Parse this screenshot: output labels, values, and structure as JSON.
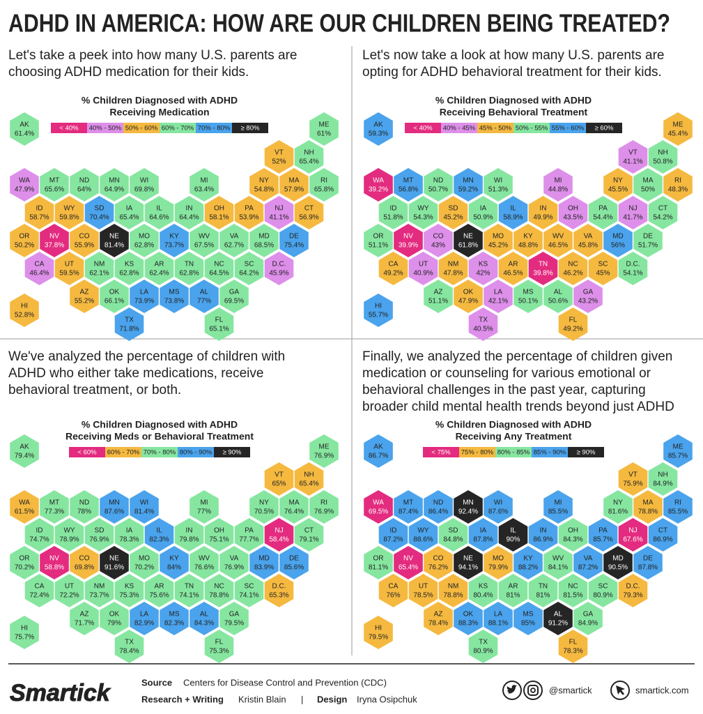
{
  "header": {
    "title": "ADHD IN AMERICA: HOW ARE OUR CHILDREN BEING TREATED?"
  },
  "chart_data": [
    {
      "type": "map",
      "description": [
        "Let's take a peek into how many U.S. parents are",
        "choosing ADHD medication for their kids."
      ],
      "title": [
        "% Children Diagnosed with ADHD",
        "Receiving Medication"
      ],
      "legend": {
        "labels": [
          "< 40%",
          "40% - 50%",
          "50% - 60%",
          "60% - 70%",
          "70% - 80%",
          "≥ 80%"
        ],
        "colors": [
          "#e32b7f",
          "#dd8fe9",
          "#f5b940",
          "#86e6a0",
          "#4aa3ec",
          "#252525"
        ],
        "bins": [
          40,
          50,
          60,
          70,
          80
        ]
      },
      "states": [
        "AK",
        "ME",
        "VT",
        "NH",
        "WA",
        "MT",
        "ND",
        "MN",
        "WI",
        "MI",
        "NY",
        "MA",
        "RI",
        "ID",
        "WY",
        "SD",
        "IA",
        "IL",
        "IN",
        "OH",
        "PA",
        "NJ",
        "CT",
        "OR",
        "NV",
        "CO",
        "NE",
        "MO",
        "KY",
        "WV",
        "VA",
        "MD",
        "DE",
        "CA",
        "UT",
        "NM",
        "KS",
        "AR",
        "TN",
        "NC",
        "SC",
        "D.C.",
        "AZ",
        "OK",
        "LA",
        "MS",
        "AL",
        "GA",
        "TX",
        "FL",
        "HI"
      ],
      "values": [
        61.4,
        61,
        52,
        65.4,
        47.9,
        65.6,
        64,
        64.9,
        69.8,
        63.4,
        54.8,
        57.9,
        65.8,
        58.7,
        59.8,
        70.4,
        65.4,
        64.6,
        64.4,
        58.1,
        53.9,
        41.1,
        56.9,
        50.2,
        37.8,
        55.9,
        81.4,
        62.8,
        73.7,
        67.5,
        62.7,
        68.5,
        75.4,
        46.4,
        59.5,
        62.1,
        62.8,
        62.4,
        62.8,
        64.5,
        64.2,
        45.9,
        55.2,
        66.1,
        73.9,
        73.8,
        77,
        69.5,
        71.8,
        65.1,
        52.8
      ],
      "value_labels": [
        "61.4%",
        "61%",
        "52%",
        "65.4%",
        "47.9%",
        "65.6%",
        "64%",
        "64.9%",
        "69.8%",
        "63.4%",
        "54.8%",
        "57.9%",
        "65.8%",
        "58.7%",
        "59.8%",
        "70.4%",
        "65.4%",
        "64.6%",
        "64.4%",
        "58.1%",
        "53.9%",
        "41.1%",
        "56.9%",
        "50.2%",
        "37.8%",
        "55.9%",
        "81.4%",
        "62.8%",
        "73.7%",
        "67.5%",
        "62.7%",
        "68.5%",
        "75.4%",
        "46.4%",
        "59.5%",
        "62.1%",
        "62.8%",
        "62.4%",
        "62.8%",
        "64.5%",
        "64.2%",
        "45.9%",
        "55.2%",
        "66.1%",
        "73.9%",
        "73.8%",
        "77%",
        "69.5%",
        "71.8%",
        "65.1%",
        "52.8%"
      ]
    },
    {
      "type": "map",
      "description": [
        "Let's now take a look at how many U.S. parents are",
        "opting for ADHD behavioral treatment for their kids."
      ],
      "title": [
        "% Children Diagnosed with ADHD",
        "Receiving Behavioral Treatment"
      ],
      "legend": {
        "labels": [
          "< 40%",
          "40% - 45%",
          "45% - 50%",
          "50% - 55%",
          "55% - 60%",
          "≥ 60%"
        ],
        "colors": [
          "#e32b7f",
          "#dd8fe9",
          "#f5b940",
          "#86e6a0",
          "#4aa3ec",
          "#252525"
        ],
        "bins": [
          40,
          45,
          50,
          55,
          60
        ]
      },
      "states": [
        "AK",
        "ME",
        "VT",
        "NH",
        "WA",
        "MT",
        "ND",
        "MN",
        "WI",
        "MI",
        "NY",
        "MA",
        "RI",
        "ID",
        "WY",
        "SD",
        "IA",
        "IL",
        "IN",
        "OH",
        "PA",
        "NJ",
        "CT",
        "OR",
        "NV",
        "CO",
        "NE",
        "MO",
        "KY",
        "WV",
        "VA",
        "MD",
        "DE",
        "CA",
        "UT",
        "NM",
        "KS",
        "AR",
        "TN",
        "NC",
        "SC",
        "D.C.",
        "AZ",
        "OK",
        "LA",
        "MS",
        "AL",
        "GA",
        "TX",
        "FL",
        "HI"
      ],
      "values": [
        59.3,
        45.4,
        41.1,
        50.8,
        39.2,
        56.8,
        50.7,
        59.2,
        51.3,
        44.8,
        45.5,
        50,
        48.3,
        51.8,
        54.3,
        45.2,
        50.9,
        58.9,
        49.9,
        43.5,
        54.4,
        41.7,
        54.2,
        51.1,
        39.9,
        43,
        61.8,
        45.2,
        48.8,
        46.5,
        45.8,
        56,
        51.7,
        49.2,
        40.9,
        47.8,
        42,
        46.5,
        39.8,
        46.2,
        45,
        54.1,
        51.1,
        47.9,
        42.1,
        50.1,
        50.6,
        43.2,
        40.5,
        49.2,
        55.7
      ],
      "value_labels": [
        "59.3%",
        "45.4%",
        "41.1%",
        "50.8%",
        "39.2%",
        "56.8%",
        "50.7%",
        "59.2%",
        "51.3%",
        "44.8%",
        "45.5%",
        "50%",
        "48.3%",
        "51.8%",
        "54.3%",
        "45.2%",
        "50.9%",
        "58.9%",
        "49.9%",
        "43.5%",
        "54.4%",
        "41.7%",
        "54.2%",
        "51.1%",
        "39.9%",
        "43%",
        "61.8%",
        "45.2%",
        "48.8%",
        "46.5%",
        "45.8%",
        "56%",
        "51.7%",
        "49.2%",
        "40.9%",
        "47.8%",
        "42%",
        "46.5%",
        "39.8%",
        "46.2%",
        "45%",
        "54.1%",
        "51.1%",
        "47.9%",
        "42.1%",
        "50.1%",
        "50.6%",
        "43.2%",
        "40.5%",
        "49.2%",
        "55.7%"
      ]
    },
    {
      "type": "map",
      "description": [
        "We've analyzed the percentage of children with",
        "ADHD who either take medications, receive",
        "behavioral treatment, or both."
      ],
      "title": [
        "% Children Diagnosed with ADHD",
        "Receiving Meds or Behavioral Treatment"
      ],
      "legend": {
        "labels": [
          "< 60%",
          "60% - 70%",
          "70% - 80%",
          "80% - 90%",
          "≥ 90%"
        ],
        "colors": [
          "#e32b7f",
          "#f5b940",
          "#86e6a0",
          "#4aa3ec",
          "#252525"
        ],
        "bins": [
          60,
          70,
          80,
          90
        ]
      },
      "states": [
        "AK",
        "ME",
        "VT",
        "NH",
        "WA",
        "MT",
        "ND",
        "MN",
        "WI",
        "MI",
        "NY",
        "MA",
        "RI",
        "ID",
        "WY",
        "SD",
        "IA",
        "IL",
        "IN",
        "OH",
        "PA",
        "NJ",
        "CT",
        "OR",
        "NV",
        "CO",
        "NE",
        "MO",
        "KY",
        "WV",
        "VA",
        "MD",
        "DE",
        "CA",
        "UT",
        "NM",
        "KS",
        "AR",
        "TN",
        "NC",
        "SC",
        "D.C.",
        "AZ",
        "OK",
        "LA",
        "MS",
        "AL",
        "GA",
        "TX",
        "FL",
        "HI"
      ],
      "values": [
        79.4,
        76.9,
        65,
        65.4,
        61.5,
        77.3,
        78,
        87.6,
        81.4,
        77,
        70.5,
        76.4,
        76.9,
        74.7,
        78.9,
        76.9,
        78.3,
        82.3,
        79.8,
        75.1,
        77.7,
        58.4,
        79.1,
        70.2,
        58.8,
        69.8,
        91.6,
        70.2,
        84,
        76.6,
        76.9,
        83.9,
        85.6,
        72.4,
        72.2,
        73.7,
        75.3,
        75.6,
        74.1,
        78.8,
        74.1,
        65.3,
        71.7,
        79,
        82.9,
        82.3,
        84.3,
        79.5,
        78.4,
        75.3,
        75.7
      ],
      "value_labels": [
        "79.4%",
        "76.9%",
        "65%",
        "65.4%",
        "61.5%",
        "77.3%",
        "78%",
        "87.6%",
        "81.4%",
        "77%",
        "70.5%",
        "76.4%",
        "76.9%",
        "74.7%",
        "78.9%",
        "76.9%",
        "78.3%",
        "82.3%",
        "79.8%",
        "75.1%",
        "77.7%",
        "58.4%",
        "79.1%",
        "70.2%",
        "58.8%",
        "69.8%",
        "91.6%",
        "70.2%",
        "84%",
        "76.6%",
        "76.9%",
        "83.9%",
        "85.6%",
        "72.4%",
        "72.2%",
        "73.7%",
        "75.3%",
        "75.6%",
        "74.1%",
        "78.8%",
        "74.1%",
        "65.3%",
        "71.7%",
        "79%",
        "82.9%",
        "82.3%",
        "84.3%",
        "79.5%",
        "78.4%",
        "75.3%",
        "75.7%"
      ]
    },
    {
      "type": "map",
      "description": [
        "Finally, we analyzed the percentage of children given",
        "medication or counseling for various emotional or",
        "behavioral challenges in the past year, capturing",
        "broader child mental health trends beyond just ADHD"
      ],
      "title": [
        "% Children Diagnosed with ADHD",
        "Receiving Any Treatment"
      ],
      "legend": {
        "labels": [
          "< 75%",
          "75% - 80%",
          "80% - 85%",
          "85% - 90%",
          "≥ 90%"
        ],
        "colors": [
          "#e32b7f",
          "#f5b940",
          "#86e6a0",
          "#4aa3ec",
          "#252525"
        ],
        "bins": [
          75,
          80,
          85,
          90
        ]
      },
      "states": [
        "AK",
        "ME",
        "VT",
        "NH",
        "WA",
        "MT",
        "ND",
        "MN",
        "WI",
        "MI",
        "NY",
        "MA",
        "RI",
        "ID",
        "WY",
        "SD",
        "IA",
        "IL",
        "IN",
        "OH",
        "PA",
        "NJ",
        "CT",
        "OR",
        "NV",
        "CO",
        "NE",
        "MO",
        "KY",
        "WV",
        "VA",
        "MD",
        "DE",
        "CA",
        "UT",
        "NM",
        "KS",
        "AR",
        "TN",
        "NC",
        "SC",
        "D.C.",
        "AZ",
        "OK",
        "LA",
        "MS",
        "AL",
        "GA",
        "TX",
        "FL",
        "HI"
      ],
      "values": [
        86.7,
        85.7,
        75.9,
        84.9,
        69.5,
        87.4,
        86.4,
        92.4,
        87.6,
        85.5,
        81.6,
        78.8,
        85.5,
        87.2,
        88.6,
        84.8,
        87.8,
        90,
        86.9,
        84.3,
        85.7,
        67.6,
        86.9,
        81.1,
        65.4,
        76.2,
        94.1,
        79.9,
        88.2,
        84.1,
        87.2,
        90.5,
        87.8,
        76,
        78.5,
        78.8,
        80.4,
        81,
        81,
        81.5,
        80.9,
        79.3,
        78.4,
        88.3,
        88.1,
        85,
        91.2,
        84.9,
        80.9,
        78.3,
        79.5
      ],
      "value_labels": [
        "86.7%",
        "85.7%",
        "75.9%",
        "84.9%",
        "69.5%",
        "87.4%",
        "86.4%",
        "92.4%",
        "87.6%",
        "85.5%",
        "81.6%",
        "78.8%",
        "85.5%",
        "87.2%",
        "88.6%",
        "84.8%",
        "87.8%",
        "90%",
        "86.9%",
        "84.3%",
        "85.7%",
        "67.6%",
        "86.9%",
        "81.1%",
        "65.4%",
        "76.2%",
        "94.1%",
        "79.9%",
        "88.2%",
        "84.1%",
        "87.2%",
        "90.5%",
        "87.8%",
        "76%",
        "78.5%",
        "78.8%",
        "80.4%",
        "81%",
        "81%",
        "81.5%",
        "80.9%",
        "79.3%",
        "78.4%",
        "88.3%",
        "88.1%",
        "85%",
        "91.2%",
        "84.9%",
        "80.9%",
        "78.3%",
        "79.5%"
      ]
    }
  ],
  "footer": {
    "logo": "Smartick",
    "source_label": "Source",
    "source": "Centers for Disease Control and Prevention (CDC)",
    "research_label": "Research + Writing",
    "research": "Kristin Blain",
    "separator": "|",
    "design_label": "Design",
    "design": "Iryna Osipchuk",
    "social": "@smartick",
    "website": "smartick.com"
  }
}
